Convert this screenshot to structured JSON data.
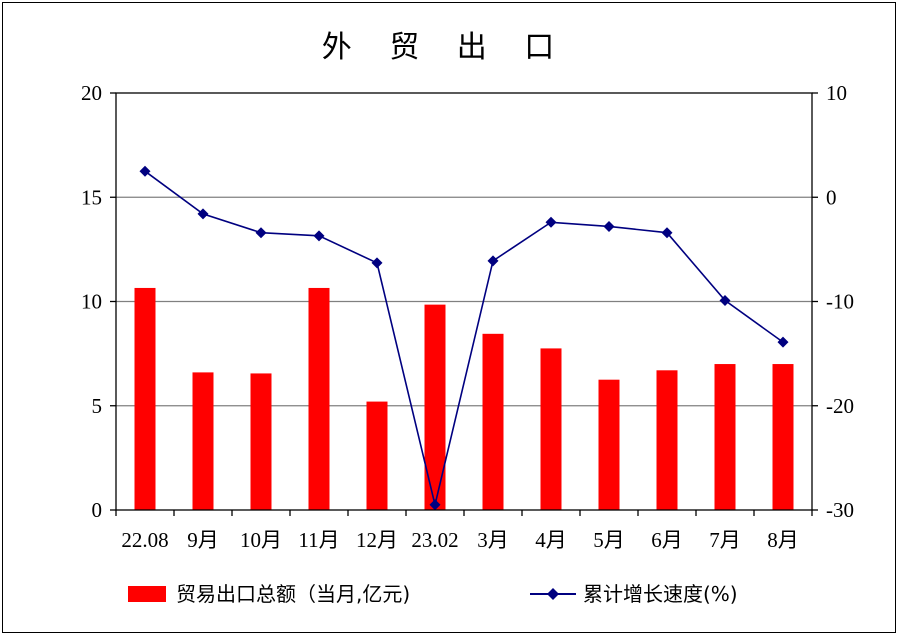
{
  "chart_data": {
    "type": "bar",
    "title": "外 贸 出 口",
    "categories": [
      "22.08",
      "9月",
      "10月",
      "11月",
      "12月",
      "23.02",
      "3月",
      "4月",
      "5月",
      "6月",
      "7月",
      "8月"
    ],
    "series": [
      {
        "name": "贸易出口总额（当月,亿元)",
        "type": "bar",
        "axis": "left",
        "color": "#ff0000",
        "values": [
          10.65,
          6.6,
          6.55,
          10.65,
          5.2,
          9.85,
          8.45,
          7.75,
          6.25,
          6.7,
          7.0,
          7.0
        ]
      },
      {
        "name": "累计增长速度(%)",
        "type": "line",
        "axis": "right",
        "color": "#000080",
        "marker": "diamond",
        "values": [
          2.5,
          -1.6,
          -3.4,
          -3.7,
          -6.3,
          -29.5,
          -6.1,
          -2.4,
          -2.8,
          -3.4,
          -9.9,
          -13.9
        ]
      }
    ],
    "y_left": {
      "ylim": [
        0,
        20
      ],
      "ticks": [
        "0",
        "5",
        "10",
        "15",
        "20"
      ]
    },
    "y_right": {
      "ylim": [
        -30,
        10
      ],
      "ticks": [
        "-30",
        "-20",
        "-10",
        "0",
        "10"
      ]
    },
    "grid": true,
    "legend_position": "bottom"
  }
}
